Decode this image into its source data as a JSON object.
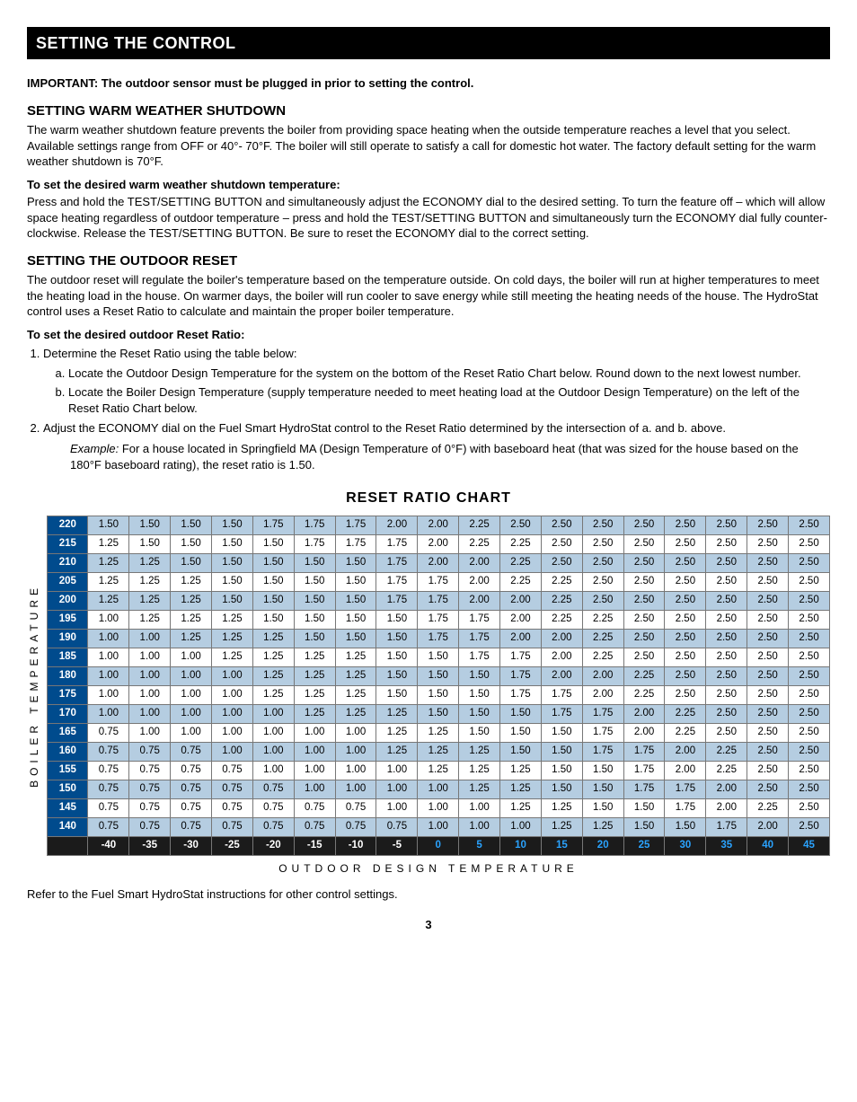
{
  "header_bar": "SETTING THE CONTROL",
  "important_note": "IMPORTANT: The outdoor sensor must be plugged in prior to setting the control.",
  "sec1": {
    "title": "SETTING WARM WEATHER SHUTDOWN",
    "p1": "The warm weather shutdown feature prevents the boiler from providing space heating when the outside temperature reaches a level that you select. Available settings range from OFF or 40°- 70°F. The boiler will still operate to satisfy a call for domestic hot water. The factory default setting for the warm weather shutdown is 70°F.",
    "sub": "To set the desired warm weather shutdown temperature:",
    "p2": "Press and hold the TEST/SETTING BUTTON and simultaneously adjust the ECONOMY dial to the desired setting. To turn the feature off – which will allow space heating regardless of outdoor temperature – press and hold the TEST/SETTING BUTTON and simultaneously turn the ECONOMY dial fully counter-clockwise. Release the TEST/SETTING BUTTON. Be sure to reset the ECONOMY dial to the correct setting."
  },
  "sec2": {
    "title": "SETTING THE OUTDOOR RESET",
    "p1": "The outdoor reset will regulate the boiler's temperature based on the temperature outside. On cold days, the boiler will run at higher temperatures to meet the heating load in the house. On warmer days, the boiler will run cooler to save energy while still meeting the heating needs of the house. The HydroStat control uses a Reset Ratio to calculate and maintain the proper boiler temperature.",
    "sub": "To set the desired outdoor Reset Ratio:",
    "li1": "Determine the Reset Ratio using the table below:",
    "li1a": "Locate the Outdoor Design Temperature for the system on the bottom of the Reset Ratio Chart below. Round down to the next lowest number.",
    "li1b": "Locate the Boiler Design Temperature (supply temperature needed to meet heating load at the Outdoor Design Temperature) on the left of the Reset Ratio Chart below.",
    "li2": "Adjust the ECONOMY dial on the Fuel Smart HydroStat control to the Reset Ratio determined by the intersection of a. and b. above.",
    "example_label": "Example:",
    "example_text": " For a house located in Springfield MA (Design Temperature of 0°F) with baseboard heat (that was sized for the house based on the 180°F baseboard rating), the reset ratio is 1.50."
  },
  "chart": {
    "title": "RESET RATIO CHART",
    "ylabel": "BOILER TEMPERATURE",
    "xlabel": "OUTDOOR DESIGN TEMPERATURE",
    "row_header_color": "#004b8d",
    "row_header_text": "#ffffff",
    "row_even_bg": "#b5cde1",
    "row_odd_bg": "#ffffff",
    "footer_bg": "#1b1b1b",
    "footer_text": "#ffffff",
    "footer_highlight": "#2aa3ff",
    "row_temps": [
      "220",
      "215",
      "210",
      "205",
      "200",
      "195",
      "190",
      "185",
      "180",
      "175",
      "170",
      "165",
      "160",
      "155",
      "150",
      "145",
      "140"
    ],
    "col_temps": [
      "-40",
      "-35",
      "-30",
      "-25",
      "-20",
      "-15",
      "-10",
      "-5",
      "0",
      "5",
      "10",
      "15",
      "20",
      "25",
      "30",
      "35",
      "40",
      "45"
    ],
    "rows": [
      [
        "1.50",
        "1.50",
        "1.50",
        "1.50",
        "1.75",
        "1.75",
        "1.75",
        "2.00",
        "2.00",
        "2.25",
        "2.50",
        "2.50",
        "2.50",
        "2.50",
        "2.50",
        "2.50",
        "2.50",
        "2.50"
      ],
      [
        "1.25",
        "1.50",
        "1.50",
        "1.50",
        "1.50",
        "1.75",
        "1.75",
        "1.75",
        "2.00",
        "2.25",
        "2.25",
        "2.50",
        "2.50",
        "2.50",
        "2.50",
        "2.50",
        "2.50",
        "2.50"
      ],
      [
        "1.25",
        "1.25",
        "1.50",
        "1.50",
        "1.50",
        "1.50",
        "1.50",
        "1.75",
        "2.00",
        "2.00",
        "2.25",
        "2.50",
        "2.50",
        "2.50",
        "2.50",
        "2.50",
        "2.50",
        "2.50"
      ],
      [
        "1.25",
        "1.25",
        "1.25",
        "1.50",
        "1.50",
        "1.50",
        "1.50",
        "1.75",
        "1.75",
        "2.00",
        "2.25",
        "2.25",
        "2.50",
        "2.50",
        "2.50",
        "2.50",
        "2.50",
        "2.50"
      ],
      [
        "1.25",
        "1.25",
        "1.25",
        "1.50",
        "1.50",
        "1.50",
        "1.50",
        "1.75",
        "1.75",
        "2.00",
        "2.00",
        "2.25",
        "2.50",
        "2.50",
        "2.50",
        "2.50",
        "2.50",
        "2.50"
      ],
      [
        "1.00",
        "1.25",
        "1.25",
        "1.25",
        "1.50",
        "1.50",
        "1.50",
        "1.50",
        "1.75",
        "1.75",
        "2.00",
        "2.25",
        "2.25",
        "2.50",
        "2.50",
        "2.50",
        "2.50",
        "2.50"
      ],
      [
        "1.00",
        "1.00",
        "1.25",
        "1.25",
        "1.25",
        "1.50",
        "1.50",
        "1.50",
        "1.75",
        "1.75",
        "2.00",
        "2.00",
        "2.25",
        "2.50",
        "2.50",
        "2.50",
        "2.50",
        "2.50"
      ],
      [
        "1.00",
        "1.00",
        "1.00",
        "1.25",
        "1.25",
        "1.25",
        "1.25",
        "1.50",
        "1.50",
        "1.75",
        "1.75",
        "2.00",
        "2.25",
        "2.50",
        "2.50",
        "2.50",
        "2.50",
        "2.50"
      ],
      [
        "1.00",
        "1.00",
        "1.00",
        "1.00",
        "1.25",
        "1.25",
        "1.25",
        "1.50",
        "1.50",
        "1.50",
        "1.75",
        "2.00",
        "2.00",
        "2.25",
        "2.50",
        "2.50",
        "2.50",
        "2.50"
      ],
      [
        "1.00",
        "1.00",
        "1.00",
        "1.00",
        "1.25",
        "1.25",
        "1.25",
        "1.50",
        "1.50",
        "1.50",
        "1.75",
        "1.75",
        "2.00",
        "2.25",
        "2.50",
        "2.50",
        "2.50",
        "2.50"
      ],
      [
        "1.00",
        "1.00",
        "1.00",
        "1.00",
        "1.00",
        "1.25",
        "1.25",
        "1.25",
        "1.50",
        "1.50",
        "1.50",
        "1.75",
        "1.75",
        "2.00",
        "2.25",
        "2.50",
        "2.50",
        "2.50"
      ],
      [
        "0.75",
        "1.00",
        "1.00",
        "1.00",
        "1.00",
        "1.00",
        "1.00",
        "1.25",
        "1.25",
        "1.50",
        "1.50",
        "1.50",
        "1.75",
        "2.00",
        "2.25",
        "2.50",
        "2.50",
        "2.50"
      ],
      [
        "0.75",
        "0.75",
        "0.75",
        "1.00",
        "1.00",
        "1.00",
        "1.00",
        "1.25",
        "1.25",
        "1.25",
        "1.50",
        "1.50",
        "1.75",
        "1.75",
        "2.00",
        "2.25",
        "2.50",
        "2.50"
      ],
      [
        "0.75",
        "0.75",
        "0.75",
        "0.75",
        "1.00",
        "1.00",
        "1.00",
        "1.00",
        "1.25",
        "1.25",
        "1.25",
        "1.50",
        "1.50",
        "1.75",
        "2.00",
        "2.25",
        "2.50",
        "2.50"
      ],
      [
        "0.75",
        "0.75",
        "0.75",
        "0.75",
        "0.75",
        "1.00",
        "1.00",
        "1.00",
        "1.00",
        "1.25",
        "1.25",
        "1.50",
        "1.50",
        "1.75",
        "1.75",
        "2.00",
        "2.50",
        "2.50"
      ],
      [
        "0.75",
        "0.75",
        "0.75",
        "0.75",
        "0.75",
        "0.75",
        "0.75",
        "1.00",
        "1.00",
        "1.00",
        "1.25",
        "1.25",
        "1.50",
        "1.50",
        "1.75",
        "2.00",
        "2.25",
        "2.50"
      ],
      [
        "0.75",
        "0.75",
        "0.75",
        "0.75",
        "0.75",
        "0.75",
        "0.75",
        "0.75",
        "1.00",
        "1.00",
        "1.00",
        "1.25",
        "1.25",
        "1.50",
        "1.50",
        "1.75",
        "2.00",
        "2.50"
      ]
    ]
  },
  "footer_sentence": "Refer to the Fuel Smart HydroStat instructions for other control settings.",
  "page_num": "3"
}
